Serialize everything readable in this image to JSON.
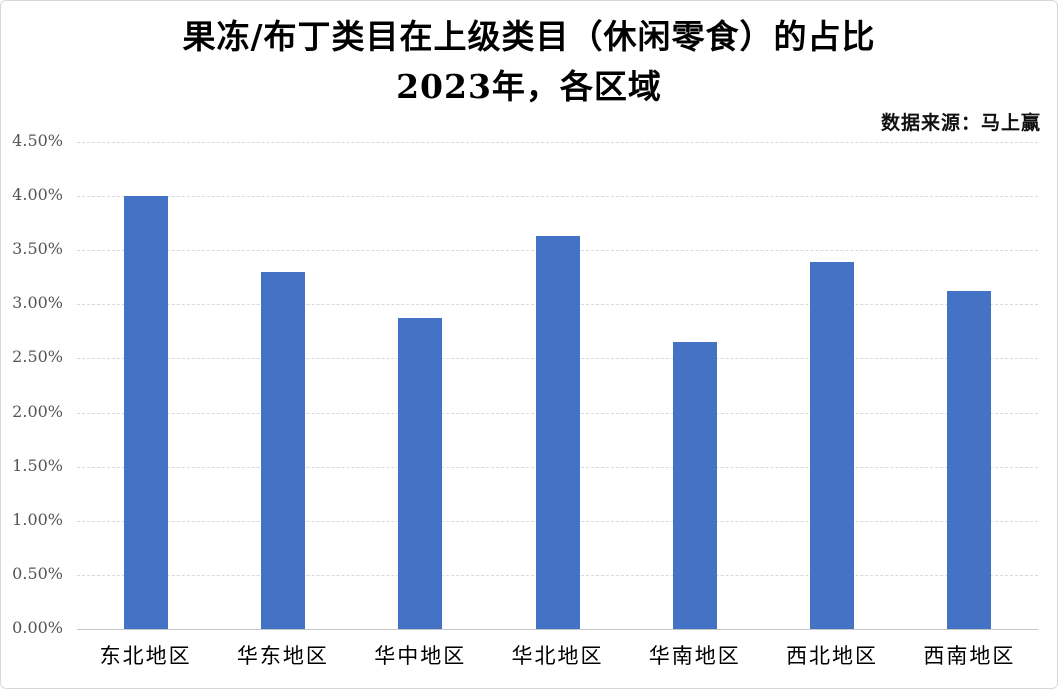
{
  "page": {
    "background": "#ffffff",
    "border_color": "#d9d9d9"
  },
  "header": {
    "title_line1": "果冻/布丁类目在上级类目（休闲零食）的占比",
    "title_line2": "2023年，各区域",
    "source": "数据来源：马上赢"
  },
  "chart_data": {
    "type": "bar",
    "title": "果冻/布丁类目在上级类目（休闲零食）的占比",
    "subtitle": "2023年，各区域",
    "source": "数据来源：马上赢",
    "categories": [
      "东北地区",
      "华东地区",
      "华中地区",
      "华北地区",
      "华南地区",
      "西北地区",
      "西南地区"
    ],
    "values": [
      4.0,
      3.3,
      2.87,
      3.63,
      2.65,
      3.39,
      3.12
    ],
    "value_labels": [
      "4.00%",
      "3.30%",
      "2.87%",
      "3.63%",
      "2.65%",
      "3.39%",
      "3.12%"
    ],
    "xlabel": "",
    "ylabel": "",
    "ylim": [
      0,
      4.5
    ],
    "ytick_step": 0.5,
    "ytick_labels": [
      "0.00%",
      "0.50%",
      "1.00%",
      "1.50%",
      "2.00%",
      "2.50%",
      "3.00%",
      "3.50%",
      "4.00%",
      "4.50%"
    ],
    "grid": true,
    "legend": false,
    "bar_color": "#4472C4",
    "gridline_color": "#d9d9d9",
    "axis_line_color": "#c6c6c6"
  }
}
